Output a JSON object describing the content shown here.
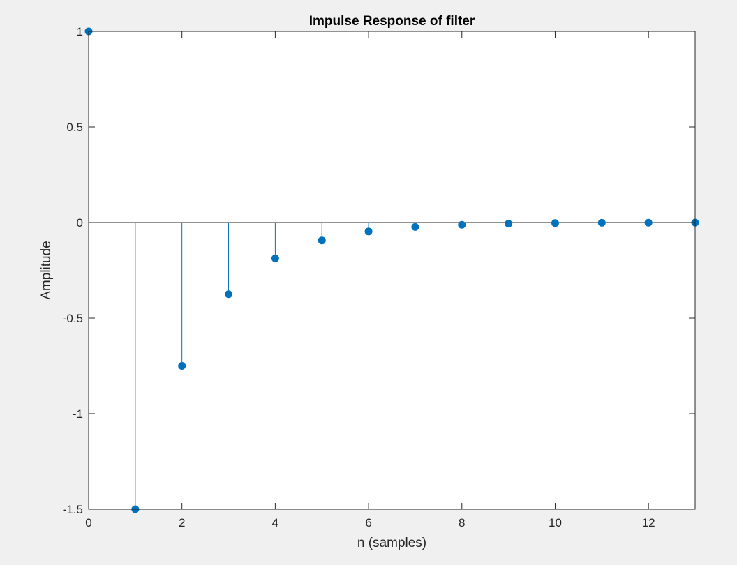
{
  "chart_data": {
    "type": "stem",
    "title": "Impulse Response of filter",
    "xlabel": "n (samples)",
    "ylabel": "Amplitude",
    "xlim": [
      0,
      13
    ],
    "ylim": [
      -1.5,
      1
    ],
    "xticks": [
      0,
      2,
      4,
      6,
      8,
      10,
      12
    ],
    "yticks": [
      -1.5,
      -1,
      -0.5,
      0,
      0.5,
      1
    ],
    "xtick_labels": [
      "0",
      "2",
      "4",
      "6",
      "8",
      "10",
      "12"
    ],
    "ytick_labels": [
      "-1.5",
      "-1",
      "-0.5",
      "0",
      "0.5",
      "1"
    ],
    "grid": false,
    "color": "#0072bd",
    "series": [
      {
        "x": [
          0,
          1,
          2,
          3,
          4,
          5,
          6,
          7,
          8,
          9,
          10,
          11,
          12,
          13
        ],
        "values": [
          1,
          -1.5,
          -0.75,
          -0.375,
          -0.1875,
          -0.09375,
          -0.046875,
          -0.0234375,
          -0.01171875,
          -0.005859375,
          -0.0029296875,
          -0.00146484375,
          -0.000732421875,
          -0.0003662109375
        ]
      }
    ]
  }
}
